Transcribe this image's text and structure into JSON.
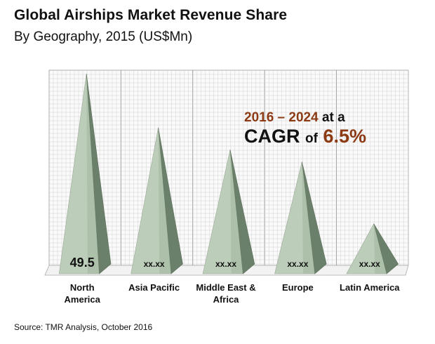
{
  "chart_data": {
    "type": "bar",
    "title": "Global Airships Market Revenue Share",
    "subtitle": "By Geography, 2015 (US$Mn)",
    "categories": [
      {
        "line1": "North",
        "line2": "America"
      },
      {
        "line1": "Asia Pacific",
        "line2": ""
      },
      {
        "line1": "Middle East &",
        "line2": "Africa"
      },
      {
        "line1": "Europe",
        "line2": ""
      },
      {
        "line1": "Latin America",
        "line2": ""
      }
    ],
    "relative_heights": [
      1.0,
      0.73,
      0.62,
      0.56,
      0.25
    ],
    "value_labels": [
      "49.5",
      "xx.xx",
      "xx.xx",
      "xx.xx",
      "xx.xx"
    ],
    "annotation": {
      "years": "2016 – 2024",
      "at_a": "at a",
      "cagr_label": "CAGR",
      "of": "of",
      "rate": "6.5%"
    },
    "grid": true,
    "colors": {
      "pyramid_light": "#bccdb9",
      "pyramid_mid": "#a3b8a0",
      "pyramid_dark": "#6b806a",
      "accent": "#8c3a14"
    }
  },
  "source": "Source: TMR Analysis, October 2016"
}
